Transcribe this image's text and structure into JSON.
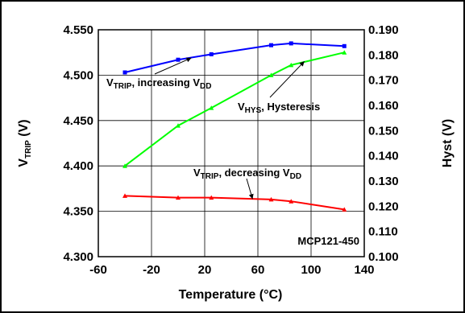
{
  "chart_data": {
    "type": "line",
    "title": "",
    "xlabel": "Temperature (°C)",
    "ylabel_left": {
      "main": "V",
      "sub": "TRIP",
      "rest": " (V)"
    },
    "ylabel_right": "Hyst (V)",
    "xlim": [
      -60,
      140
    ],
    "ylim_left": [
      4.3,
      4.55
    ],
    "ylim_right": [
      0.1,
      0.19
    ],
    "x_ticks": [
      "-60",
      "-20",
      "20",
      "60",
      "100",
      "140"
    ],
    "y_left_ticks": [
      "4.300",
      "4.350",
      "4.400",
      "4.450",
      "4.500",
      "4.550"
    ],
    "y_right_ticks": [
      "0.100",
      "0.110",
      "0.120",
      "0.130",
      "0.140",
      "0.150",
      "0.160",
      "0.170",
      "0.180",
      "0.190"
    ],
    "grid": true,
    "series": [
      {
        "axis": "left",
        "color": "#0000ff",
        "marker": "square",
        "x": [
          -40,
          0,
          25,
          70,
          85,
          125
        ],
        "y": [
          4.503,
          4.517,
          4.523,
          4.533,
          4.535,
          4.532
        ]
      },
      {
        "axis": "right",
        "color": "#00ff00",
        "marker": "triangle",
        "x": [
          -40,
          0,
          25,
          70,
          85,
          125
        ],
        "y": [
          0.136,
          0.152,
          0.159,
          0.172,
          0.176,
          0.181
        ]
      },
      {
        "axis": "left",
        "color": "#ff0000",
        "marker": "triangle",
        "x": [
          -40,
          0,
          25,
          70,
          85,
          125
        ],
        "y": [
          4.367,
          4.365,
          4.365,
          4.363,
          4.361,
          4.352
        ]
      }
    ],
    "annotations": [
      {
        "id": "trip-inc",
        "main": "V",
        "sub1": "TRIP",
        "mid": ", increasing V",
        "sub2": "DD",
        "arrow_to_x": 10,
        "arrow_to_y": 4.519,
        "axis": "left"
      },
      {
        "id": "hys",
        "main": "V",
        "sub1": "HYS",
        "mid": ", Hysteresis",
        "sub2": "",
        "arrow_to_x": 95,
        "arrow_to_y": 0.1775,
        "axis": "right"
      },
      {
        "id": "trip-dec",
        "main": "V",
        "sub1": "TRIP",
        "mid": ", decreasing V",
        "sub2": "DD",
        "arrow_to_x": 56,
        "arrow_to_y": 4.3635,
        "axis": "left"
      }
    ],
    "part_label": "MCP121-450"
  }
}
